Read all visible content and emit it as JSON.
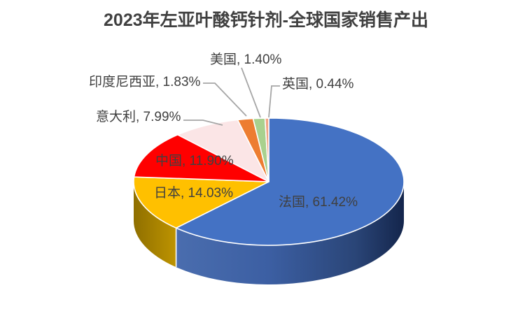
{
  "title": "2023年左亚叶酸钙针剂-全球国家销售产出",
  "chart_data": {
    "type": "pie",
    "style": "3d",
    "title": "2023年左亚叶酸钙针剂-全球国家销售产出",
    "categories": [
      "法国",
      "日本",
      "中国",
      "意大利",
      "印度尼西亚",
      "美国",
      "英国"
    ],
    "values": [
      61.42,
      14.03,
      11.9,
      7.99,
      1.83,
      1.4,
      0.44
    ],
    "unit": "percent",
    "display_labels": [
      "法国, 61.42%",
      "日本, 14.03%",
      "中国, 11.90%",
      "意大利, 7.99%",
      "印度尼西亚, 1.83%",
      "美国, 1.40%",
      "英国, 0.44%"
    ],
    "colors": [
      "#4472C4",
      "#FFC000",
      "#FF0000",
      "#FBE5E6",
      "#ED7D31",
      "#A9D18E",
      "#F2A584"
    ],
    "title_color": "#404040",
    "label_color": "#404040",
    "leader_line_color": "#A6A6A6",
    "background": "#FFFFFF",
    "start_angle_deg": 0,
    "direction": "clockwise",
    "legend": "none",
    "label_style": "category, percent"
  }
}
